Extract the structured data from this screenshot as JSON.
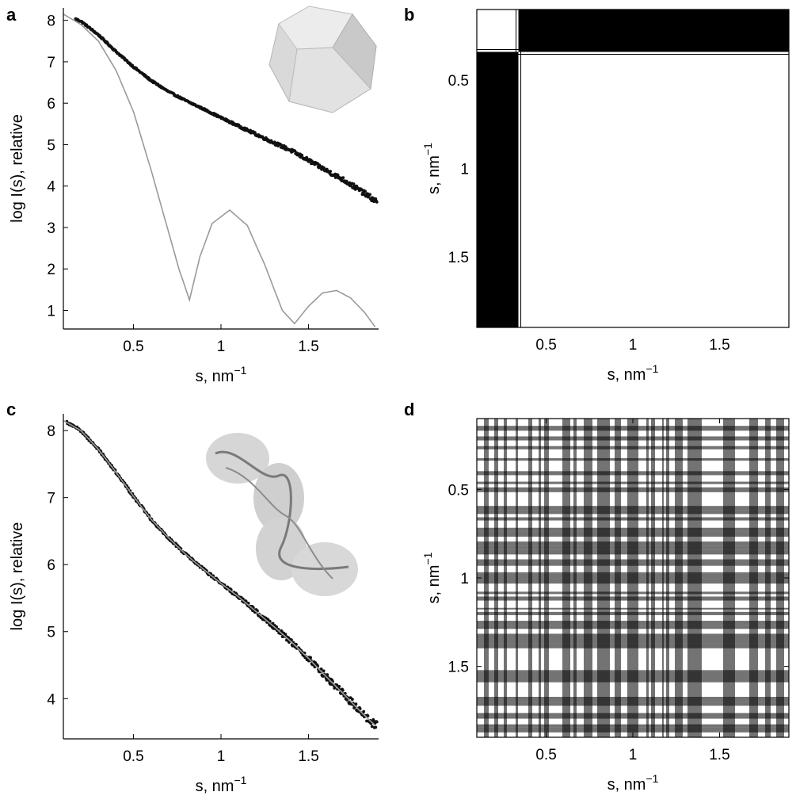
{
  "chart_data": [
    {
      "panel": "a",
      "type": "scatter",
      "xlabel": "s, nm",
      "xlabel_sup": "−1",
      "ylabel": "log I(s), relative",
      "xlim": [
        0.1,
        1.9
      ],
      "ylim": [
        0.55,
        8.3
      ],
      "xticks": [
        0.5,
        1,
        1.5
      ],
      "xtick_labels": [
        "0.5",
        "1",
        "1.5"
      ],
      "yticks": [
        1,
        2,
        3,
        4,
        5,
        6,
        7,
        8
      ],
      "ytick_labels": [
        "1",
        "2",
        "3",
        "4",
        "5",
        "6",
        "7",
        "8"
      ],
      "grid": false,
      "series": [
        {
          "role": "experimental data points (black dots)",
          "color": "#111111",
          "x": [
            0.1,
            0.2,
            0.3,
            0.4,
            0.5,
            0.6,
            0.7,
            0.8,
            0.9,
            1.0,
            1.1,
            1.2,
            1.3,
            1.4,
            1.5,
            1.6,
            1.7,
            1.8,
            1.88
          ],
          "y": [
            8.15,
            7.98,
            7.65,
            7.25,
            6.88,
            6.55,
            6.28,
            6.06,
            5.86,
            5.65,
            5.45,
            5.25,
            5.05,
            4.86,
            4.62,
            4.38,
            4.15,
            3.88,
            3.65
          ]
        },
        {
          "role": "theoretical curve (grey line)",
          "color": "#9a9a9a",
          "x": [
            0.1,
            0.2,
            0.3,
            0.4,
            0.5,
            0.6,
            0.7,
            0.76,
            0.82,
            0.88,
            0.95,
            1.05,
            1.15,
            1.25,
            1.35,
            1.42,
            1.5,
            1.58,
            1.66,
            1.74,
            1.82,
            1.88
          ],
          "y": [
            8.15,
            7.9,
            7.5,
            6.8,
            5.8,
            4.4,
            2.9,
            2.0,
            1.25,
            2.3,
            3.1,
            3.42,
            3.05,
            2.1,
            1.0,
            0.68,
            1.1,
            1.42,
            1.48,
            1.3,
            0.95,
            0.6
          ]
        }
      ],
      "inset": "icosahedral-particle-model"
    },
    {
      "panel": "b",
      "type": "heatmap",
      "xlabel": "s, nm",
      "xlabel_sup": "−1",
      "ylabel": "s, nm",
      "ylabel_sup": "−1",
      "xlim": [
        0.1,
        1.9
      ],
      "ylim": [
        0.1,
        1.9
      ],
      "xticks": [
        0.5,
        1,
        1.5
      ],
      "xtick_labels": [
        "0.5",
        "1",
        "1.5"
      ],
      "yticks": [
        0.5,
        1,
        1.5
      ],
      "ytick_labels": [
        "0.5",
        "1",
        "1.5"
      ],
      "split_at": 0.34,
      "blocks": [
        {
          "region": "low-low",
          "value": 1,
          "color": "#ffffff"
        },
        {
          "region": "low-high",
          "value": 0,
          "color": "#000000"
        },
        {
          "region": "high-low",
          "value": 0,
          "color": "#000000"
        },
        {
          "region": "high-high",
          "value": 1,
          "color": "#ffffff"
        }
      ]
    },
    {
      "panel": "c",
      "type": "scatter",
      "xlabel": "s, nm",
      "xlabel_sup": "−1",
      "ylabel": "log I(s), relative",
      "xlim": [
        0.1,
        1.9
      ],
      "ylim": [
        3.4,
        8.25
      ],
      "xticks": [
        0.5,
        1,
        1.5
      ],
      "xtick_labels": [
        "0.5",
        "1",
        "1.5"
      ],
      "yticks": [
        4,
        5,
        6,
        7,
        8
      ],
      "ytick_labels": [
        "4",
        "5",
        "6",
        "7",
        "8"
      ],
      "grid": false,
      "series": [
        {
          "role": "experimental data points (black dots)",
          "color": "#111111",
          "x": [
            0.1,
            0.2,
            0.3,
            0.4,
            0.5,
            0.6,
            0.7,
            0.8,
            0.9,
            1.0,
            1.1,
            1.2,
            1.3,
            1.4,
            1.5,
            1.6,
            1.7,
            1.8,
            1.88
          ],
          "y": [
            8.15,
            8.0,
            7.72,
            7.38,
            7.02,
            6.68,
            6.4,
            6.15,
            5.93,
            5.72,
            5.52,
            5.3,
            5.08,
            4.85,
            4.6,
            4.33,
            4.07,
            3.8,
            3.6
          ]
        },
        {
          "role": "fitted curve (grey line)",
          "color": "#9a9a9a",
          "x": [
            0.1,
            0.2,
            0.3,
            0.4,
            0.5,
            0.6,
            0.7,
            0.8,
            0.9,
            1.0,
            1.1,
            1.2,
            1.3,
            1.4,
            1.5,
            1.6,
            1.7,
            1.8,
            1.88
          ],
          "y": [
            8.15,
            8.0,
            7.72,
            7.38,
            7.02,
            6.68,
            6.4,
            6.15,
            5.93,
            5.72,
            5.52,
            5.3,
            5.08,
            4.85,
            4.6,
            4.33,
            4.07,
            3.8,
            3.6
          ]
        }
      ],
      "inset": "protein-bead-model"
    },
    {
      "panel": "d",
      "type": "heatmap",
      "xlabel": "s, nm",
      "xlabel_sup": "−1",
      "ylabel": "s, nm",
      "ylabel_sup": "−1",
      "xlim": [
        0.1,
        1.9
      ],
      "ylim": [
        0.1,
        1.9
      ],
      "xticks": [
        0.5,
        1,
        1.5
      ],
      "xtick_labels": [
        "0.5",
        "1",
        "1.5"
      ],
      "yticks": [
        0.5,
        1,
        1.5
      ],
      "ytick_labels": [
        "0.5",
        "1",
        "1.5"
      ],
      "pattern": "random binary checkerboard",
      "colors": [
        "#000000",
        "#ffffff"
      ]
    }
  ]
}
